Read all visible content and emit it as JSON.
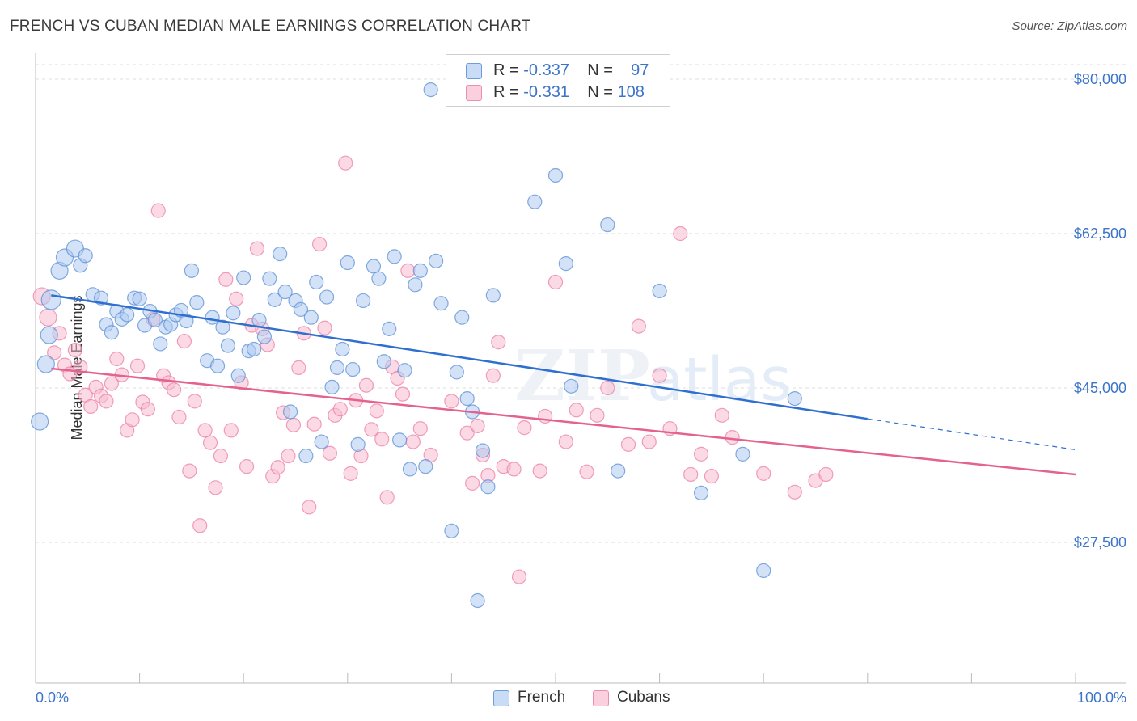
{
  "header": {
    "title": "FRENCH VS CUBAN MEDIAN MALE EARNINGS CORRELATION CHART",
    "source": "Source: ZipAtlas.com"
  },
  "legend": {
    "french": {
      "r_label": "R = ",
      "r_value": "-0.337",
      "n_label": "N = ",
      "n_value": "97"
    },
    "cubans": {
      "r_label": "R = ",
      "r_value": "-0.331",
      "n_label": "N = ",
      "n_value": "108"
    }
  },
  "bottom_legend": {
    "french": "French",
    "cubans": "Cubans"
  },
  "colors": {
    "french": "#5b8fd6",
    "cubans": "#ec7fa3",
    "french_fill": "#aecbf0",
    "cubans_fill": "#f7bcd0",
    "axis_label": "#3b74c9"
  },
  "chart_data": {
    "type": "scatter",
    "title": "FRENCH VS CUBAN MEDIAN MALE EARNINGS CORRELATION CHART",
    "ylabel": "Median Male Earnings",
    "xlabel": "",
    "x_tick_labels": [
      "0.0%",
      "100.0%"
    ],
    "y_tick_labels": [
      "$80,000",
      "$62,500",
      "$45,000",
      "$27,500"
    ],
    "y_ticks": [
      80000,
      62500,
      45000,
      27500
    ],
    "xlim": [
      0,
      100
    ],
    "ylim": [
      10000,
      82000
    ],
    "grid": true,
    "legend_position": "top-center",
    "series": [
      {
        "name": "French",
        "r": -0.337,
        "n": 97,
        "trend": {
          "x": [
            1.5,
            80
          ],
          "y": [
            55500,
            41500
          ],
          "dashed_to": [
            100,
            38000
          ]
        },
        "points": [
          [
            1.5,
            55,
            3
          ],
          [
            1.3,
            51,
            2
          ],
          [
            1,
            47.7,
            2
          ],
          [
            0.4,
            41.2,
            2
          ],
          [
            2.3,
            58.3,
            2
          ],
          [
            2.8,
            59.8,
            2
          ],
          [
            3.8,
            60.8,
            2
          ],
          [
            4.3,
            58.9,
            1
          ],
          [
            4.8,
            60,
            1
          ],
          [
            5.5,
            55.6,
            1
          ],
          [
            6.3,
            55.2,
            1
          ],
          [
            6.8,
            52.2,
            1
          ],
          [
            7.3,
            51.3,
            1
          ],
          [
            7.8,
            53.7,
            1
          ],
          [
            8.3,
            52.8,
            1
          ],
          [
            8.8,
            53.3,
            1
          ],
          [
            9.5,
            55.2,
            1
          ],
          [
            10,
            55.1,
            1
          ],
          [
            10.5,
            52.1,
            1
          ],
          [
            11,
            53.7,
            1
          ],
          [
            11.5,
            52.7,
            1
          ],
          [
            12,
            50,
            1
          ],
          [
            12.5,
            51.9,
            1
          ],
          [
            13,
            52.2,
            1
          ],
          [
            13.5,
            53.3,
            1
          ],
          [
            14,
            53.8,
            1
          ],
          [
            14.5,
            52.6,
            1
          ],
          [
            15,
            58.3,
            1
          ],
          [
            15.5,
            54.7,
            1
          ],
          [
            16.5,
            48.1,
            1
          ],
          [
            17,
            53,
            1
          ],
          [
            17.5,
            47.5,
            1
          ],
          [
            18,
            51.9,
            1
          ],
          [
            18.5,
            49.8,
            1
          ],
          [
            19,
            53.5,
            1
          ],
          [
            19.5,
            46.4,
            1
          ],
          [
            20,
            57.5,
            1
          ],
          [
            20.5,
            49.2,
            1
          ],
          [
            21,
            49.4,
            1
          ],
          [
            21.5,
            52.7,
            1
          ],
          [
            22,
            50.8,
            1
          ],
          [
            22.5,
            57.4,
            1
          ],
          [
            23,
            55,
            1
          ],
          [
            23.5,
            60.2,
            1
          ],
          [
            24,
            55.9,
            1
          ],
          [
            24.5,
            42.3,
            1
          ],
          [
            25,
            54.9,
            1
          ],
          [
            25.5,
            53.9,
            1
          ],
          [
            26,
            37.3,
            1
          ],
          [
            26.5,
            53,
            1
          ],
          [
            27,
            57,
            1
          ],
          [
            27.5,
            38.9,
            1
          ],
          [
            28,
            55.3,
            1
          ],
          [
            28.5,
            45.1,
            1
          ],
          [
            29,
            47.3,
            1
          ],
          [
            29.5,
            49.4,
            1
          ],
          [
            30,
            59.2,
            1
          ],
          [
            30.5,
            47.1,
            1
          ],
          [
            31,
            38.6,
            1
          ],
          [
            31.5,
            54.9,
            1
          ],
          [
            32.5,
            58.8,
            1
          ],
          [
            33,
            57.4,
            1
          ],
          [
            33.5,
            48,
            1
          ],
          [
            34,
            51.7,
            1
          ],
          [
            34.5,
            59.9,
            1
          ],
          [
            35,
            39.1,
            1
          ],
          [
            35.5,
            47,
            1
          ],
          [
            36,
            35.8,
            1
          ],
          [
            36.5,
            56.7,
            1
          ],
          [
            37,
            58.3,
            1
          ],
          [
            37.5,
            36.1,
            1
          ],
          [
            38,
            78.8,
            1
          ],
          [
            38.5,
            59.4,
            1
          ],
          [
            39,
            54.6,
            1
          ],
          [
            40,
            28.8,
            1
          ],
          [
            40.5,
            46.8,
            1
          ],
          [
            41,
            53,
            1
          ],
          [
            41.5,
            43.8,
            1
          ],
          [
            42,
            42.3,
            1
          ],
          [
            42.5,
            20.9,
            1
          ],
          [
            43,
            37.9,
            1
          ],
          [
            43.5,
            33.8,
            1
          ],
          [
            44,
            55.5,
            1
          ],
          [
            48,
            66.1,
            1
          ],
          [
            50,
            69.1,
            1
          ],
          [
            51,
            59.1,
            1
          ],
          [
            51.5,
            45.2,
            1
          ],
          [
            55,
            63.5,
            1
          ],
          [
            56,
            35.6,
            1
          ],
          [
            60,
            56,
            1
          ],
          [
            64,
            33.1,
            1
          ],
          [
            68,
            37.5,
            1
          ],
          [
            70,
            24.3,
            1
          ],
          [
            73,
            43.8,
            1
          ]
        ]
      },
      {
        "name": "Cubans",
        "r": -0.331,
        "n": 108,
        "trend": {
          "x": [
            1.5,
            100
          ],
          "y": [
            47200,
            35200
          ]
        },
        "points": [
          [
            0.6,
            55.4,
            2
          ],
          [
            1.2,
            53,
            2
          ],
          [
            1.8,
            49,
            1
          ],
          [
            2.3,
            51.2,
            1
          ],
          [
            2.8,
            47.6,
            1
          ],
          [
            3.3,
            46.6,
            1
          ],
          [
            3.8,
            49.3,
            1
          ],
          [
            4.3,
            47.4,
            1
          ],
          [
            4.8,
            44.2,
            1
          ],
          [
            5.3,
            42.9,
            1
          ],
          [
            5.8,
            45.1,
            1
          ],
          [
            6.3,
            44.1,
            1
          ],
          [
            6.8,
            43.5,
            1
          ],
          [
            7.3,
            45.5,
            1
          ],
          [
            7.8,
            48.3,
            1
          ],
          [
            8.3,
            46.5,
            1
          ],
          [
            8.8,
            40.2,
            1
          ],
          [
            9.3,
            41.4,
            1
          ],
          [
            9.8,
            47.5,
            1
          ],
          [
            10.3,
            43.4,
            1
          ],
          [
            10.8,
            42.6,
            1
          ],
          [
            11.3,
            52.8,
            1
          ],
          [
            11.8,
            65.1,
            1
          ],
          [
            12.3,
            46.4,
            1
          ],
          [
            12.8,
            45.6,
            1
          ],
          [
            13.3,
            44.8,
            1
          ],
          [
            13.8,
            41.7,
            1
          ],
          [
            14.3,
            50.3,
            1
          ],
          [
            14.8,
            35.6,
            1
          ],
          [
            15.3,
            43.5,
            1
          ],
          [
            15.8,
            29.4,
            1
          ],
          [
            16.3,
            40.2,
            1
          ],
          [
            16.8,
            38.8,
            1
          ],
          [
            17.3,
            33.7,
            1
          ],
          [
            17.8,
            37.3,
            1
          ],
          [
            18.3,
            57.3,
            1
          ],
          [
            18.8,
            40.2,
            1
          ],
          [
            19.3,
            55.1,
            1
          ],
          [
            19.8,
            45.6,
            1
          ],
          [
            20.3,
            36.1,
            1
          ],
          [
            20.8,
            52.1,
            1
          ],
          [
            21.3,
            60.8,
            1
          ],
          [
            21.8,
            51.7,
            1
          ],
          [
            22.3,
            49.9,
            1
          ],
          [
            22.8,
            35,
            1
          ],
          [
            23.3,
            36,
            1
          ],
          [
            23.8,
            42.2,
            1
          ],
          [
            24.3,
            37.3,
            1
          ],
          [
            24.8,
            40.8,
            1
          ],
          [
            25.3,
            47.3,
            1
          ],
          [
            25.8,
            51.2,
            1
          ],
          [
            26.3,
            31.5,
            1
          ],
          [
            26.8,
            40.9,
            1
          ],
          [
            27.3,
            61.3,
            1
          ],
          [
            27.8,
            51.8,
            1
          ],
          [
            28.3,
            37.6,
            1
          ],
          [
            28.8,
            41.9,
            1
          ],
          [
            29.3,
            42.6,
            1
          ],
          [
            29.8,
            70.5,
            1
          ],
          [
            30.3,
            35.3,
            1
          ],
          [
            30.8,
            43.6,
            1
          ],
          [
            31.3,
            37.3,
            1
          ],
          [
            31.8,
            45.3,
            1
          ],
          [
            32.3,
            40.3,
            1
          ],
          [
            32.8,
            42.4,
            1
          ],
          [
            33.3,
            39.2,
            1
          ],
          [
            33.8,
            32.6,
            1
          ],
          [
            34.3,
            47.4,
            1
          ],
          [
            34.8,
            46.1,
            1
          ],
          [
            35.3,
            44.3,
            1
          ],
          [
            35.8,
            58.3,
            1
          ],
          [
            36.3,
            38.9,
            1
          ],
          [
            37,
            40.4,
            1
          ],
          [
            38,
            37.4,
            1
          ],
          [
            40,
            43.5,
            1
          ],
          [
            41.5,
            39.9,
            1
          ],
          [
            42,
            34.2,
            1
          ],
          [
            42.5,
            40.7,
            1
          ],
          [
            43,
            37.4,
            1
          ],
          [
            43.5,
            35.1,
            1
          ],
          [
            44,
            46.4,
            1
          ],
          [
            44.5,
            50.2,
            1
          ],
          [
            45,
            36.1,
            1
          ],
          [
            46,
            35.8,
            1
          ],
          [
            46.5,
            23.6,
            1
          ],
          [
            47,
            40.5,
            1
          ],
          [
            48.5,
            35.6,
            1
          ],
          [
            49,
            41.8,
            1
          ],
          [
            50,
            57,
            1
          ],
          [
            51,
            38.9,
            1
          ],
          [
            52,
            42.5,
            1
          ],
          [
            53,
            35.5,
            1
          ],
          [
            54,
            41.9,
            1
          ],
          [
            55,
            45,
            1
          ],
          [
            57,
            38.6,
            1
          ],
          [
            58,
            52,
            1
          ],
          [
            59,
            38.9,
            1
          ],
          [
            60,
            46.4,
            1
          ],
          [
            61,
            40.4,
            1
          ],
          [
            62,
            62.5,
            1
          ],
          [
            63,
            35.2,
            1
          ],
          [
            64,
            37.5,
            1
          ],
          [
            65,
            35,
            1
          ],
          [
            66,
            41.9,
            1
          ],
          [
            67,
            39.4,
            1
          ],
          [
            70,
            35.3,
            1
          ],
          [
            73,
            33.2,
            1
          ],
          [
            75,
            34.5,
            1
          ],
          [
            76,
            35.2,
            1
          ]
        ]
      }
    ]
  }
}
